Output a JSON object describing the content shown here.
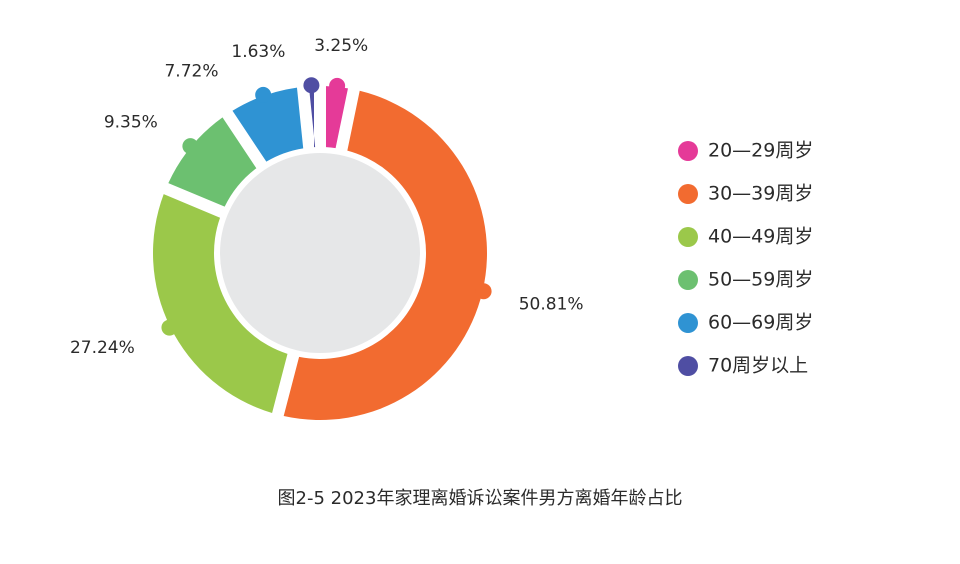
{
  "chart_data": {
    "type": "pie",
    "variant": "donut",
    "title": "图2-5  2023年家理离婚诉讼案件男方离婚年龄占比",
    "legend_position": "right",
    "categories": [
      "20—29周岁",
      "30—39周岁",
      "40—49周岁",
      "50—59周岁",
      "60—69周岁",
      "70周岁以上"
    ],
    "values": [
      3.25,
      50.81,
      27.24,
      9.35,
      7.72,
      1.63
    ],
    "value_labels": [
      "3.25%",
      "50.81%",
      "27.24%",
      "9.35%",
      "7.72%",
      "1.63%"
    ],
    "colors": [
      "#e53a98",
      "#f26b30",
      "#9bc84a",
      "#6cc070",
      "#2f93d3",
      "#4f4ea3"
    ],
    "center_color": "#e6e7e8"
  }
}
